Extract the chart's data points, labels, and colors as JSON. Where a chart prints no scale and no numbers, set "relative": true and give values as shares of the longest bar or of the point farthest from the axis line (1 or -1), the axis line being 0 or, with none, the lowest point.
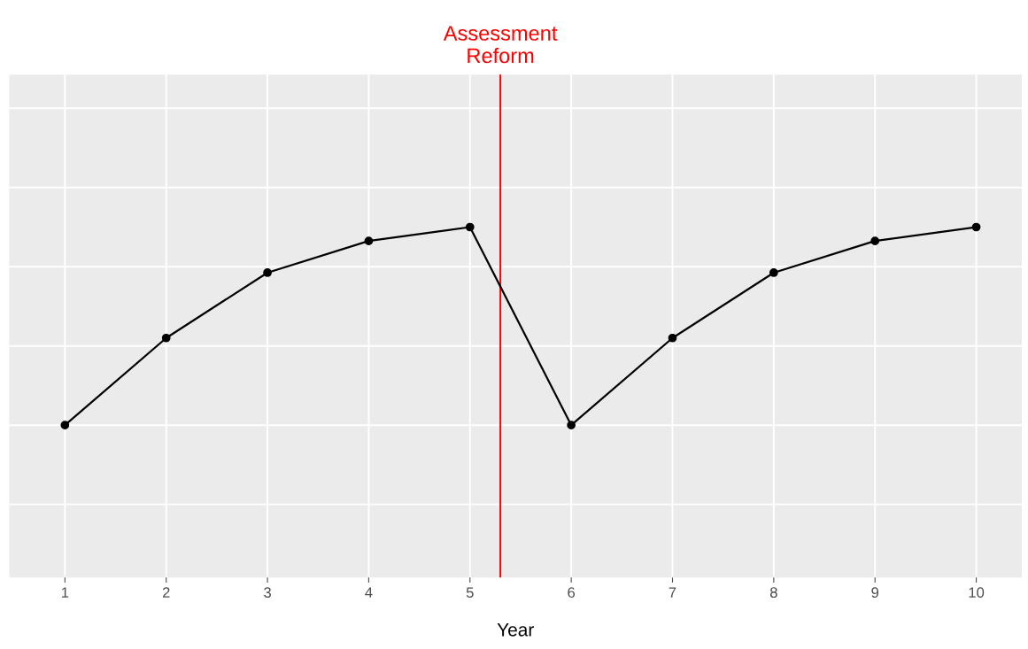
{
  "chart_data": {
    "type": "line",
    "relative": true,
    "xlabel": "Year",
    "x": [
      1,
      2,
      3,
      4,
      5,
      6,
      7,
      8,
      9,
      10
    ],
    "series": [
      {
        "color": "#000000",
        "values": [
          0,
          0.44,
          0.77,
          0.93,
          1,
          0,
          0.44,
          0.77,
          0.93,
          1
        ]
      }
    ],
    "xlim": [
      0.45,
      10.45
    ],
    "xticks": [
      1,
      2,
      3,
      4,
      5,
      6,
      7,
      8,
      9,
      10
    ],
    "tick_labels": "x",
    "grid": true,
    "marker": "circle",
    "line_style": "solid",
    "ref_lines": [
      {
        "axis": "x",
        "value": 5.3,
        "label": "Assessment\nReform",
        "color": "#ff0000"
      }
    ]
  }
}
